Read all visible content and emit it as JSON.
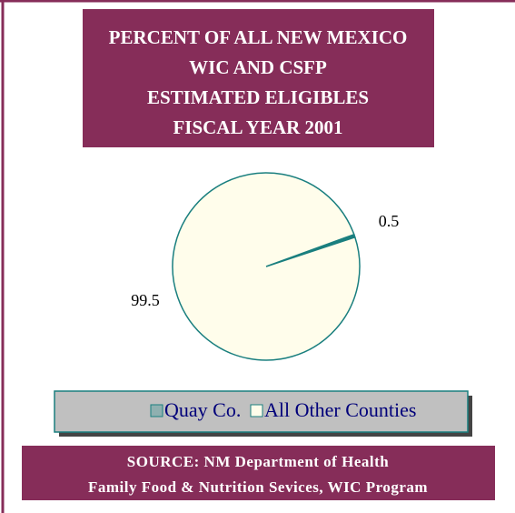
{
  "chart_data": {
    "type": "pie",
    "title": [
      "PERCENT OF ALL NEW MEXICO",
      "WIC AND CSFP",
      "ESTIMATED ELIGIBLES",
      "FISCAL YEAR 2001"
    ],
    "categories": [
      "Quay Co.",
      "All Other Counties"
    ],
    "values": [
      0.5,
      99.5
    ],
    "colors": [
      "#1a7f7f",
      "#fffdeb"
    ],
    "source": [
      "SOURCE: NM Department of Health",
      "Family Food & Nutrition Sevices, WIC Program"
    ]
  }
}
